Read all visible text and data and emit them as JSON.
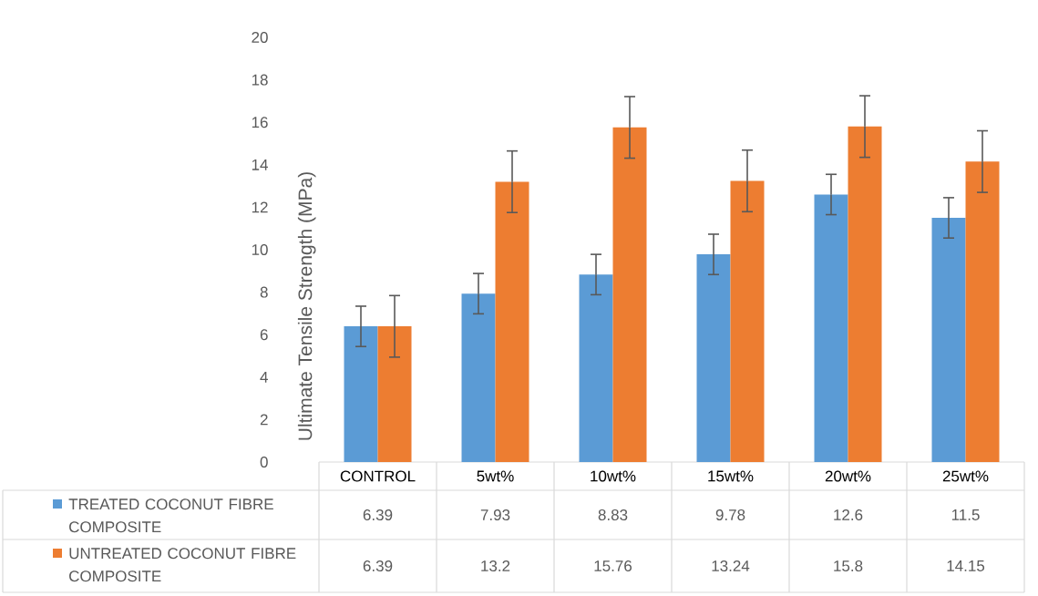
{
  "chart_data": {
    "type": "bar",
    "ylabel": "Ultimate Tensile Strength (MPa)",
    "categories": [
      "CONTROL",
      "5wt%",
      "10wt%",
      "15wt%",
      "20wt%",
      "25wt%"
    ],
    "series": [
      {
        "name": "TREATED COCONUT FIBRE COMPOSITE",
        "color": "#5b9bd5",
        "values": [
          6.39,
          7.93,
          8.83,
          9.78,
          12.6,
          11.5
        ],
        "errors": [
          0.95,
          0.95,
          0.95,
          0.95,
          0.95,
          0.95
        ]
      },
      {
        "name": "UNTREATED COCONUT FIBRE COMPOSITE",
        "color": "#ed7d31",
        "values": [
          6.39,
          13.2,
          15.76,
          13.24,
          15.8,
          14.15
        ],
        "errors": [
          1.45,
          1.45,
          1.45,
          1.45,
          1.45,
          1.45
        ]
      }
    ],
    "ylim": [
      0,
      20
    ],
    "yticks": [
      0,
      2,
      4,
      6,
      8,
      10,
      12,
      14,
      16,
      18,
      20
    ],
    "data_labels": true,
    "legend": "bottom"
  }
}
